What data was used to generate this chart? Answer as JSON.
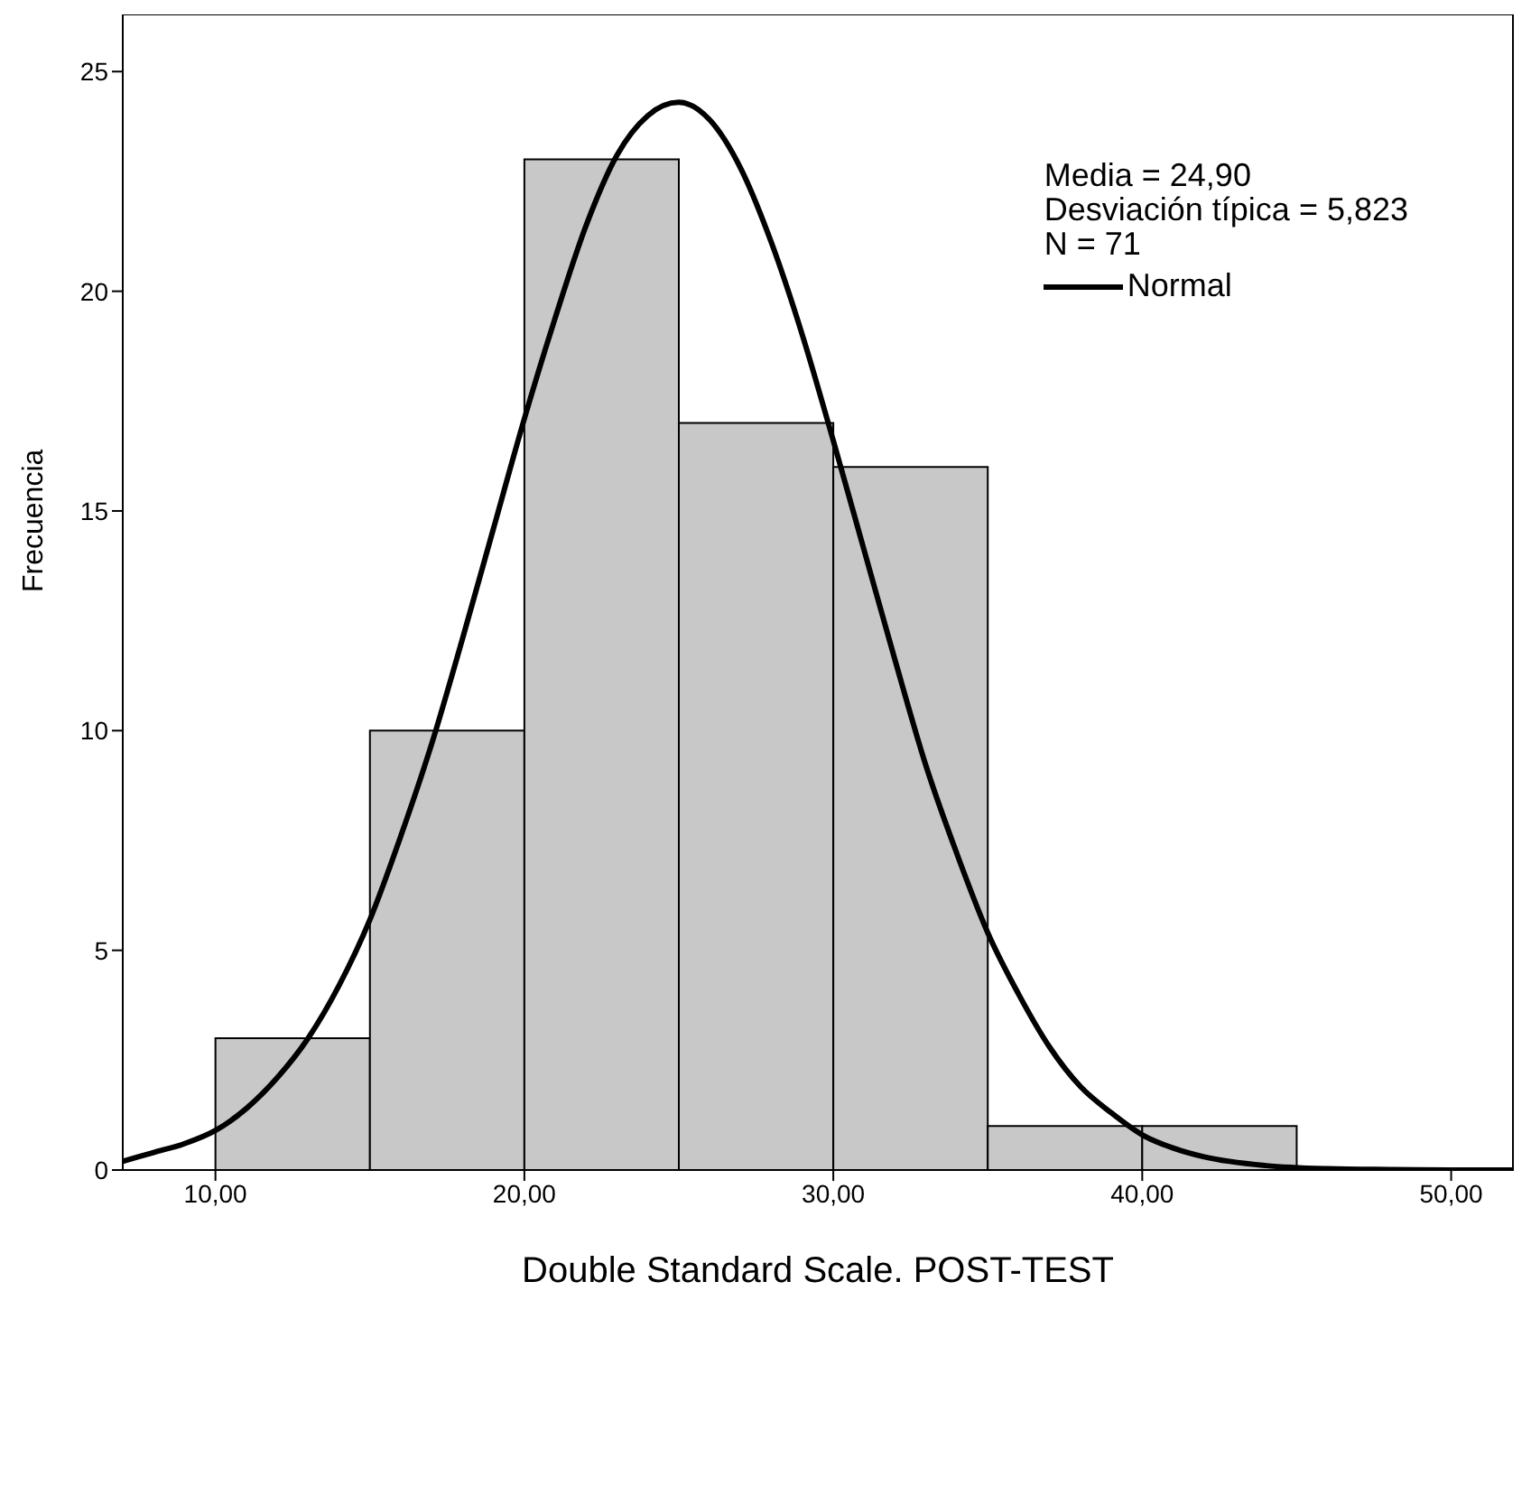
{
  "chart_data": {
    "type": "histogram",
    "xlabel": "Double Standard Scale. POST-TEST",
    "ylabel": "Frecuencia",
    "bins": [
      10,
      15,
      20,
      25,
      30,
      35,
      40,
      45
    ],
    "values": [
      3,
      10,
      23,
      17,
      16,
      1,
      1
    ],
    "color": "#c8c8c8",
    "series": [
      {
        "type": "line",
        "name": "Normal",
        "color": "#000000",
        "x": [
          7,
          8,
          9,
          10,
          11,
          12,
          13,
          14,
          15,
          16,
          17,
          18,
          19,
          20,
          21,
          22,
          23,
          24,
          25,
          26,
          27,
          28,
          29,
          30,
          31,
          32,
          33,
          34,
          35,
          36,
          37,
          38,
          39,
          40,
          41,
          42,
          44,
          46,
          48,
          50,
          52
        ],
        "values": [
          0.2,
          0.4,
          0.6,
          0.9,
          1.4,
          2.1,
          3.0,
          4.2,
          5.7,
          7.6,
          9.7,
          12.1,
          14.6,
          17.1,
          19.4,
          21.5,
          23.1,
          24.0,
          24.3,
          23.9,
          22.8,
          21.1,
          19.0,
          16.6,
          14.1,
          11.6,
          9.2,
          7.2,
          5.4,
          4.0,
          2.8,
          1.9,
          1.3,
          0.8,
          0.5,
          0.3,
          0.1,
          0.03,
          0.01,
          0,
          0
        ]
      }
    ],
    "annotations": [
      "Media = 24,90",
      "Desviación típica = 5,823",
      "N = 71"
    ],
    "xlim": [
      7,
      52
    ],
    "ylim": [
      0,
      26.3
    ],
    "xticks": [
      {
        "value": 10,
        "label": "10,00"
      },
      {
        "value": 20,
        "label": "20,00"
      },
      {
        "value": 30,
        "label": "30,00"
      },
      {
        "value": 40,
        "label": "40,00"
      },
      {
        "value": 50,
        "label": "50,00"
      }
    ],
    "yticks": [
      0,
      5,
      10,
      15,
      20,
      25
    ],
    "legend": "top right",
    "marker": "none",
    "line_style": "solid"
  }
}
